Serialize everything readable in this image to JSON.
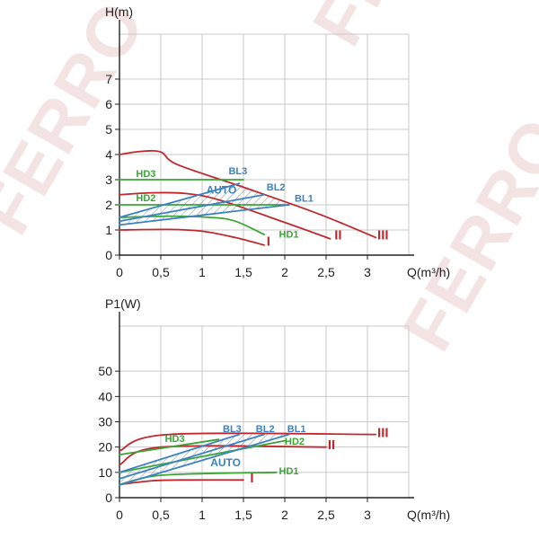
{
  "watermark_text": "FERRO",
  "colors": {
    "red": "#c0282d",
    "green": "#3aa535",
    "blue": "#3b82c4",
    "grid": "#c8c8c8",
    "axis": "#222222",
    "hatch": "#6a7f8f"
  },
  "chart_data": [
    {
      "type": "line",
      "title": "",
      "ylabel": "H(m)",
      "xlabel": "Q(m³/h)",
      "xlim": [
        0,
        3.5
      ],
      "ylim": [
        0,
        8
      ],
      "x_ticks": [
        "0",
        "0,5",
        "1",
        "1,5",
        "2",
        "2,5",
        "3"
      ],
      "y_ticks": [
        "0",
        "1",
        "2",
        "3",
        "4",
        "5",
        "6",
        "7"
      ],
      "grid": true,
      "series": [
        {
          "name": "I",
          "color": "red",
          "label_at": [
            1.78,
            0.38
          ],
          "points": [
            [
              0,
              1.0
            ],
            [
              0.6,
              1.02
            ],
            [
              1.0,
              0.95
            ],
            [
              1.4,
              0.7
            ],
            [
              1.75,
              0.4
            ]
          ]
        },
        {
          "name": "II",
          "color": "red",
          "label_at": [
            2.6,
            0.62
          ],
          "points": [
            [
              0,
              2.4
            ],
            [
              0.4,
              2.48
            ],
            [
              0.8,
              2.45
            ],
            [
              1.2,
              2.2
            ],
            [
              2.0,
              1.3
            ],
            [
              2.55,
              0.65
            ]
          ]
        },
        {
          "name": "III",
          "color": "red",
          "label_at": [
            3.12,
            0.62
          ],
          "points": [
            [
              0,
              4.0
            ],
            [
              0.25,
              4.12
            ],
            [
              0.5,
              4.1
            ],
            [
              0.7,
              3.6
            ],
            [
              1.5,
              2.7
            ],
            [
              2.4,
              1.65
            ],
            [
              3.1,
              0.7
            ]
          ]
        },
        {
          "name": "HD1",
          "color": "green",
          "label_at": [
            1.93,
            0.7
          ],
          "points": [
            [
              0,
              1.5
            ],
            [
              0.6,
              1.55
            ],
            [
              1.1,
              1.5
            ],
            [
              1.4,
              1.35
            ],
            [
              1.75,
              0.82
            ]
          ]
        },
        {
          "name": "HD2",
          "color": "green",
          "label_at": [
            0.2,
            2.15
          ],
          "points": [
            [
              0,
              2.0
            ],
            [
              2.05,
              2.0
            ]
          ]
        },
        {
          "name": "HD3",
          "color": "green",
          "label_at": [
            0.2,
            3.1
          ],
          "points": [
            [
              0,
              3.0
            ],
            [
              1.5,
              3.0
            ]
          ]
        },
        {
          "name": "BL1",
          "color": "blue",
          "label_at": [
            2.12,
            2.12
          ],
          "points": [
            [
              0,
              1.2
            ],
            [
              2.05,
              2.0
            ]
          ]
        },
        {
          "name": "BL2",
          "color": "blue",
          "label_at": [
            1.78,
            2.58
          ],
          "points": [
            [
              0,
              1.35
            ],
            [
              1.75,
              2.4
            ]
          ]
        },
        {
          "name": "BL3",
          "color": "blue",
          "label_at": [
            1.32,
            3.22
          ],
          "points": [
            [
              0,
              1.5
            ],
            [
              1.45,
              2.85
            ]
          ]
        }
      ],
      "auto_label": {
        "text": "AUTO",
        "at": [
          1.05,
          2.45
        ]
      }
    },
    {
      "type": "line",
      "title": "",
      "ylabel": "P1(W)",
      "xlabel": "Q(m³/h)",
      "xlim": [
        0,
        3.5
      ],
      "ylim": [
        0,
        60
      ],
      "x_ticks": [
        "0",
        "0,5",
        "1",
        "1,5",
        "2",
        "2,5",
        "3"
      ],
      "y_ticks": [
        "0",
        "10",
        "20",
        "30",
        "40",
        "50"
      ],
      "grid": true,
      "series": [
        {
          "name": "I",
          "color": "red",
          "label_at": [
            1.58,
            6.1
          ],
          "points": [
            [
              0,
              5.2
            ],
            [
              0.4,
              6.7
            ],
            [
              0.8,
              7.0
            ],
            [
              1.5,
              7.0
            ]
          ]
        },
        {
          "name": "II",
          "color": "red",
          "label_at": [
            2.52,
            19.2
          ],
          "points": [
            [
              0,
              13.0
            ],
            [
              0.5,
              20.0
            ],
            [
              2.5,
              20.0
            ]
          ]
        },
        {
          "name": "III",
          "color": "red",
          "label_at": [
            3.12,
            24.0
          ],
          "points": [
            [
              0,
              18.5
            ],
            [
              0.6,
              25.0
            ],
            [
              3.1,
              25.0
            ]
          ]
        },
        {
          "name": "HD1",
          "color": "green",
          "label_at": [
            1.93,
            9.3
          ],
          "points": [
            [
              0,
              5.2
            ],
            [
              0.4,
              8.5
            ],
            [
              1.0,
              9.5
            ],
            [
              1.9,
              10.0
            ]
          ]
        },
        {
          "name": "HD2",
          "color": "green",
          "label_at": [
            2.0,
            21.0
          ],
          "points": [
            [
              0,
              10.0
            ],
            [
              2.0,
              22.5
            ]
          ]
        },
        {
          "name": "HD3",
          "color": "green",
          "label_at": [
            0.55,
            22.0
          ],
          "points": [
            [
              0,
              17.0
            ],
            [
              1.2,
              23.0
            ]
          ]
        },
        {
          "name": "BL1",
          "color": "blue",
          "label_at": [
            2.03,
            26.0
          ],
          "points": [
            [
              0,
              5.0
            ],
            [
              2.05,
              25.0
            ]
          ]
        },
        {
          "name": "BL2",
          "color": "blue",
          "label_at": [
            1.65,
            26.0
          ],
          "points": [
            [
              0,
              7.5
            ],
            [
              1.75,
              25.0
            ]
          ]
        },
        {
          "name": "BL3",
          "color": "blue",
          "label_at": [
            1.25,
            26.0
          ],
          "points": [
            [
              0,
              10.0
            ],
            [
              1.45,
              25.0
            ]
          ]
        }
      ],
      "auto_label": {
        "text": "AUTO",
        "at": [
          1.1,
          12.5
        ]
      }
    }
  ]
}
